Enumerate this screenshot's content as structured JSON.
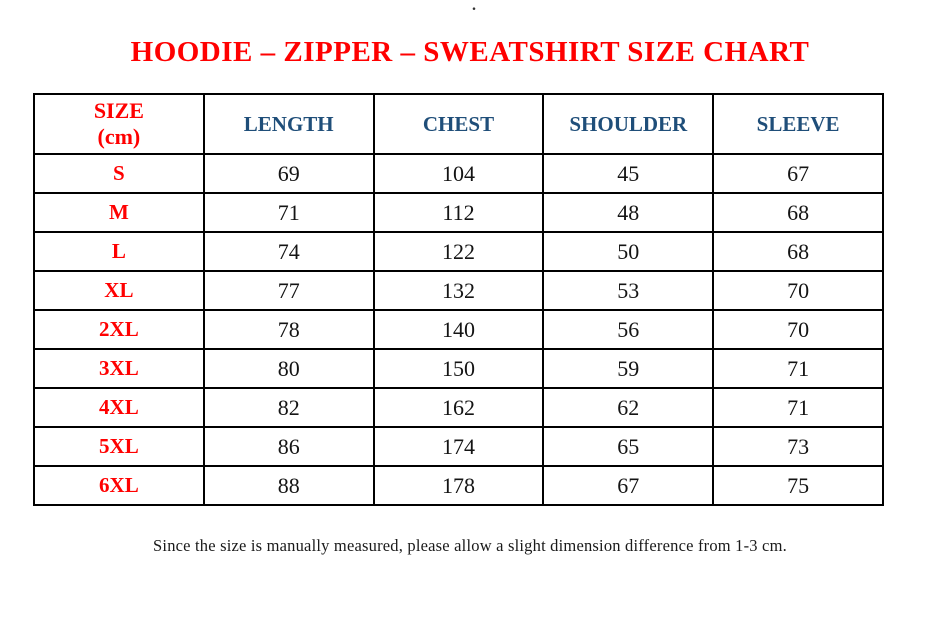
{
  "stray_mark": ".",
  "title": "HOODIE – ZIPPER – SWEATSHIRT SIZE CHART",
  "table": {
    "header": {
      "size_line1": "SIZE",
      "size_line2": "(cm)",
      "length": "LENGTH",
      "chest": "CHEST",
      "shoulder": "SHOULDER",
      "sleeve": "SLEEVE"
    },
    "rows": [
      {
        "size": "S",
        "length": "69",
        "chest": "104",
        "shoulder": "45",
        "sleeve": "67"
      },
      {
        "size": "M",
        "length": "71",
        "chest": "112",
        "shoulder": "48",
        "sleeve": "68"
      },
      {
        "size": "L",
        "length": "74",
        "chest": "122",
        "shoulder": "50",
        "sleeve": "68"
      },
      {
        "size": "XL",
        "length": "77",
        "chest": "132",
        "shoulder": "53",
        "sleeve": "70"
      },
      {
        "size": "2XL",
        "length": "78",
        "chest": "140",
        "shoulder": "56",
        "sleeve": "70"
      },
      {
        "size": "3XL",
        "length": "80",
        "chest": "150",
        "shoulder": "59",
        "sleeve": "71"
      },
      {
        "size": "4XL",
        "length": "82",
        "chest": "162",
        "shoulder": "62",
        "sleeve": "71"
      },
      {
        "size": "5XL",
        "length": "86",
        "chest": "174",
        "shoulder": "65",
        "sleeve": "73"
      },
      {
        "size": "6XL",
        "length": "88",
        "chest": "178",
        "shoulder": "67",
        "sleeve": "75"
      }
    ]
  },
  "footer": "Since the size is manually measured, please allow a slight dimension difference from 1-3 cm.",
  "colors": {
    "title_red": "#ff0000",
    "size_label_red": "#ff0000",
    "header_blue": "#1f4e79",
    "number_black": "#141414",
    "border_black": "#000000",
    "background": "#ffffff"
  }
}
